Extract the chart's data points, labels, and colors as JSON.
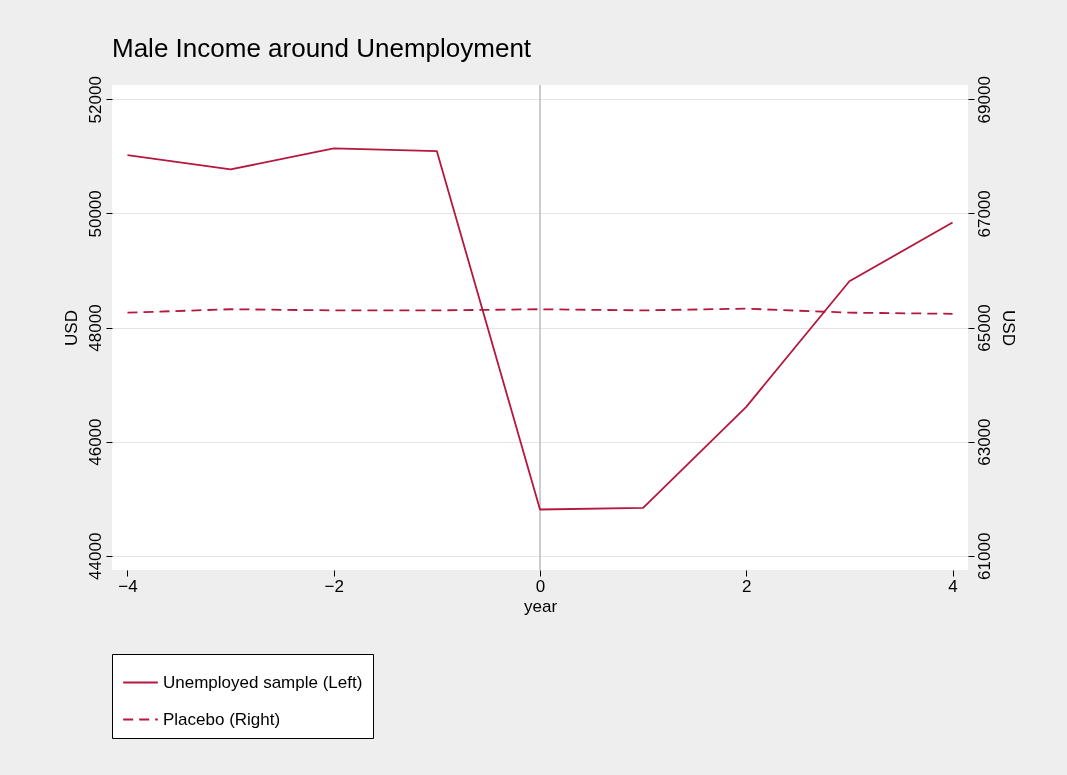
{
  "chart_data": {
    "type": "line",
    "title": "Male Income around Unemployment",
    "xlabel": "year",
    "ylabel": "USD",
    "y2label": "USD",
    "x": [
      -4,
      -3,
      -2,
      -1,
      0,
      1,
      2,
      3,
      4
    ],
    "xlim": [
      -4.15,
      4.15
    ],
    "xticks": [
      -4,
      -2,
      0,
      2,
      4
    ],
    "ylim": [
      43750,
      52250
    ],
    "yticks": [
      44000,
      46000,
      48000,
      50000,
      52000
    ],
    "y2lim": [
      60750,
      69250
    ],
    "y2ticks": [
      61000,
      63000,
      65000,
      67000,
      69000
    ],
    "grid": "y",
    "legend": "bottom",
    "ref_lines": [
      {
        "axis": "x",
        "value": 0,
        "color": "#bbbbbb"
      }
    ],
    "series": [
      {
        "name": "Unemployed sample (Left)",
        "color": "#b5173e",
        "line_style": "solid",
        "values": [
          51020,
          50770,
          51140,
          51090,
          44810,
          44840,
          46610,
          48810,
          49840
        ]
      },
      {
        "name": "Placebo (Right)",
        "color": "#b5173e",
        "line_style": "dashed",
        "axis": "y2",
        "values": [
          65260,
          65320,
          65300,
          65300,
          65320,
          65300,
          65330,
          65260,
          65240
        ]
      }
    ]
  }
}
